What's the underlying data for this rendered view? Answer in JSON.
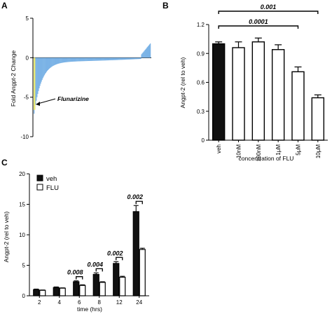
{
  "chart_data": [
    {
      "panel": "A",
      "type": "bar",
      "ylabel": "Fold Angpt-2 Change",
      "ylim": [
        -10,
        5
      ],
      "yticks": [
        "5",
        "0",
        "-5",
        "-10"
      ],
      "series_color": "#7bb3e6",
      "highlight_color": "#e8e874",
      "annotation": "Flunarizine",
      "n_bars": 160,
      "shape": {
        "min": -7.1,
        "plateau": -0.5,
        "max": 1.8
      }
    },
    {
      "panel": "B",
      "type": "bar",
      "ylabel": "Angpt-2  (rel to veh)",
      "xlabel": "concentration of FLU",
      "ylim": [
        0,
        1.2
      ],
      "yticks": [
        "0",
        "0.3",
        "0.6",
        "0.9",
        "1.2"
      ],
      "categories": [
        "veh",
        "10nM",
        "100nM",
        "1µM",
        "5µM",
        "10µM"
      ],
      "values": [
        1.0,
        0.96,
        1.02,
        0.94,
        0.71,
        0.44
      ],
      "errors": [
        0.02,
        0.06,
        0.04,
        0.05,
        0.05,
        0.03
      ],
      "fills": [
        "#111111",
        "#ffffff",
        "#ffffff",
        "#ffffff",
        "#ffffff",
        "#ffffff"
      ],
      "brackets": [
        {
          "label": "0.001",
          "from": 0,
          "to": 5
        },
        {
          "label": "0.0001",
          "from": 0,
          "to": 4
        }
      ]
    },
    {
      "panel": "C",
      "type": "bar",
      "ylabel": "Angpt-2  (rel to veh)",
      "xlabel": "time (hrs)",
      "ylim": [
        0,
        20
      ],
      "yticks": [
        "0",
        "5",
        "10",
        "15",
        "20"
      ],
      "categories": [
        "2",
        "4",
        "6",
        "8",
        "12",
        "24"
      ],
      "series": [
        {
          "name": "veh",
          "color": "#111111",
          "values": [
            1.0,
            1.35,
            2.3,
            3.5,
            5.3,
            13.8
          ],
          "errors": [
            0.1,
            0.1,
            0.15,
            0.25,
            0.3,
            1.0
          ]
        },
        {
          "name": "FLU",
          "color": "#ffffff",
          "values": [
            0.9,
            1.25,
            1.7,
            2.2,
            3.05,
            7.6
          ],
          "errors": [
            0.05,
            0.05,
            0.1,
            0.1,
            0.15,
            0.2
          ]
        }
      ],
      "brackets": [
        {
          "label": "0.008",
          "index": 2
        },
        {
          "label": "0.004",
          "index": 3
        },
        {
          "label": "0.002",
          "index": 4
        },
        {
          "label": "0.002",
          "index": 5
        }
      ]
    }
  ]
}
